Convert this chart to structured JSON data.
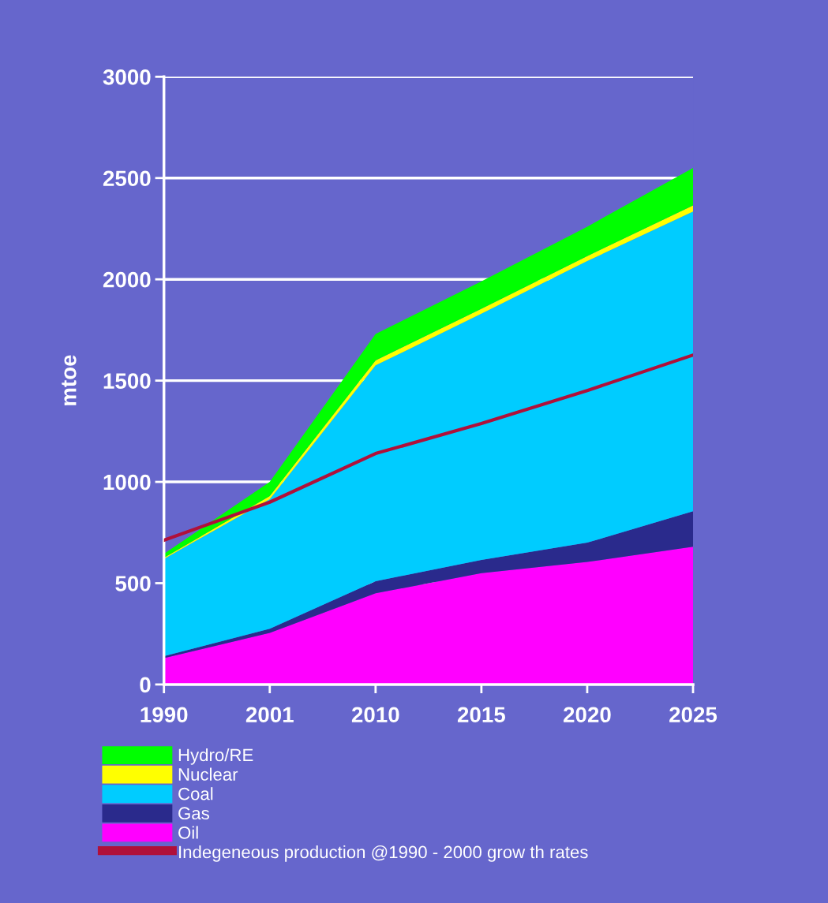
{
  "chart_data": {
    "type": "area",
    "stacked": true,
    "ylabel": "mtoe",
    "categories": [
      "1990",
      "2001",
      "2010",
      "2015",
      "2020",
      "2025"
    ],
    "series": [
      {
        "name": "Oil",
        "color": "#ff00ff",
        "values": [
          130,
          255,
          450,
          550,
          605,
          680
        ]
      },
      {
        "name": "Gas",
        "color": "#2a2a8c",
        "values": [
          10,
          20,
          60,
          65,
          95,
          175
        ]
      },
      {
        "name": "Coal",
        "color": "#00ccff",
        "values": [
          480,
          640,
          1065,
          1215,
          1390,
          1480
        ]
      },
      {
        "name": "Nuclear",
        "color": "#ffff00",
        "values": [
          5,
          15,
          25,
          25,
          25,
          30
        ]
      },
      {
        "name": "Hydro/RE",
        "color": "#00ff00",
        "values": [
          20,
          70,
          130,
          135,
          145,
          185
        ]
      },
      {
        "name": "Indegeneous production @1990 - 2000 grow th rates",
        "type": "line",
        "color": "#b0103a",
        "values": [
          712,
          900,
          1140,
          1288,
          1451,
          1626
        ]
      }
    ],
    "ylim": [
      0,
      3000
    ],
    "yticks": [
      0,
      500,
      1000,
      1500,
      2000,
      2500,
      3000
    ],
    "grid": "y",
    "legend": "bottom left"
  }
}
